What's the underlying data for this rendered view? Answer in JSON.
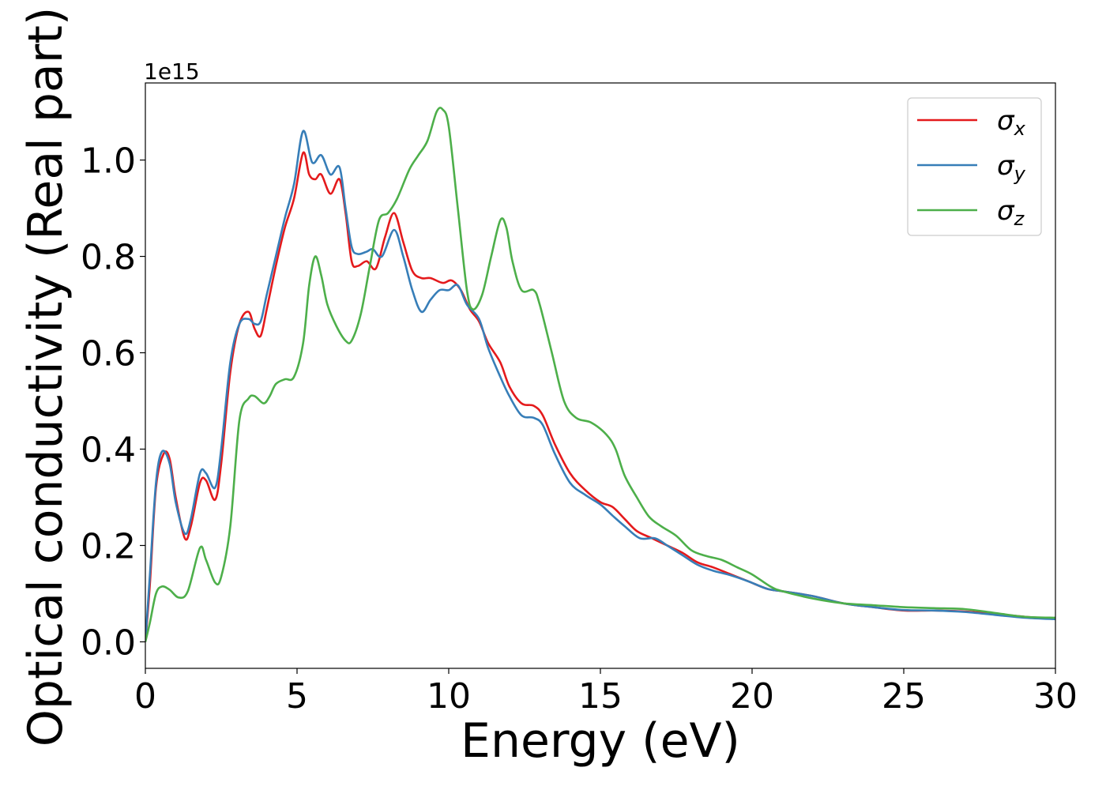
{
  "chart_data": {
    "type": "line",
    "xlabel": "Energy (eV)",
    "ylabel": "Optical conductivity (Real part)",
    "y_offset_label": "1e15",
    "xlim": [
      0,
      30
    ],
    "ylim": [
      -0.055,
      1.16
    ],
    "x_ticks": [
      0,
      5,
      10,
      15,
      20,
      25,
      30
    ],
    "x_tick_labels": [
      "0",
      "5",
      "10",
      "15",
      "20",
      "25",
      "30"
    ],
    "y_ticks": [
      0.0,
      0.2,
      0.4,
      0.6,
      0.8,
      1.0
    ],
    "y_tick_labels": [
      "0.0",
      "0.2",
      "0.4",
      "0.6",
      "0.8",
      "1.0"
    ],
    "grid": false,
    "legend_position": "top-right",
    "series": [
      {
        "name": "σx",
        "symbol": "σ",
        "subscript": "x",
        "color": "#e41a1c",
        "points": [
          [
            0,
            0
          ],
          [
            0.15,
            0.12
          ],
          [
            0.35,
            0.32
          ],
          [
            0.6,
            0.39
          ],
          [
            0.8,
            0.38
          ],
          [
            1.0,
            0.3
          ],
          [
            1.3,
            0.215
          ],
          [
            1.5,
            0.24
          ],
          [
            1.8,
            0.33
          ],
          [
            2.0,
            0.335
          ],
          [
            2.3,
            0.295
          ],
          [
            2.5,
            0.37
          ],
          [
            2.8,
            0.56
          ],
          [
            3.1,
            0.66
          ],
          [
            3.4,
            0.685
          ],
          [
            3.6,
            0.65
          ],
          [
            3.8,
            0.635
          ],
          [
            4.0,
            0.69
          ],
          [
            4.3,
            0.78
          ],
          [
            4.6,
            0.86
          ],
          [
            4.9,
            0.92
          ],
          [
            5.2,
            1.015
          ],
          [
            5.4,
            0.97
          ],
          [
            5.6,
            0.96
          ],
          [
            5.8,
            0.97
          ],
          [
            6.1,
            0.93
          ],
          [
            6.4,
            0.96
          ],
          [
            6.6,
            0.89
          ],
          [
            6.8,
            0.79
          ],
          [
            7.0,
            0.78
          ],
          [
            7.3,
            0.79
          ],
          [
            7.6,
            0.775
          ],
          [
            7.9,
            0.84
          ],
          [
            8.2,
            0.89
          ],
          [
            8.5,
            0.83
          ],
          [
            8.8,
            0.77
          ],
          [
            9.1,
            0.755
          ],
          [
            9.4,
            0.755
          ],
          [
            9.8,
            0.745
          ],
          [
            10.1,
            0.75
          ],
          [
            10.4,
            0.73
          ],
          [
            10.7,
            0.69
          ],
          [
            11.0,
            0.665
          ],
          [
            11.3,
            0.62
          ],
          [
            11.7,
            0.58
          ],
          [
            12.0,
            0.53
          ],
          [
            12.4,
            0.495
          ],
          [
            12.8,
            0.49
          ],
          [
            13.1,
            0.47
          ],
          [
            13.5,
            0.41
          ],
          [
            14.0,
            0.35
          ],
          [
            14.5,
            0.315
          ],
          [
            15.0,
            0.29
          ],
          [
            15.4,
            0.28
          ],
          [
            15.8,
            0.255
          ],
          [
            16.2,
            0.23
          ],
          [
            16.7,
            0.215
          ],
          [
            17.2,
            0.2
          ],
          [
            17.7,
            0.185
          ],
          [
            18.2,
            0.165
          ],
          [
            18.7,
            0.155
          ],
          [
            19.3,
            0.14
          ],
          [
            19.9,
            0.125
          ],
          [
            20.5,
            0.11
          ],
          [
            21.0,
            0.105
          ],
          [
            22.0,
            0.095
          ],
          [
            23.0,
            0.08
          ],
          [
            24.0,
            0.072
          ],
          [
            25.0,
            0.065
          ],
          [
            26.0,
            0.065
          ],
          [
            27.0,
            0.063
          ],
          [
            28.0,
            0.058
          ],
          [
            29.0,
            0.052
          ],
          [
            30.0,
            0.048
          ]
        ]
      },
      {
        "name": "σy",
        "symbol": "σ",
        "subscript": "y",
        "color": "#377eb8",
        "points": [
          [
            0,
            0
          ],
          [
            0.15,
            0.14
          ],
          [
            0.35,
            0.33
          ],
          [
            0.55,
            0.395
          ],
          [
            0.8,
            0.37
          ],
          [
            1.0,
            0.29
          ],
          [
            1.3,
            0.225
          ],
          [
            1.5,
            0.255
          ],
          [
            1.8,
            0.35
          ],
          [
            2.0,
            0.35
          ],
          [
            2.3,
            0.32
          ],
          [
            2.5,
            0.4
          ],
          [
            2.8,
            0.58
          ],
          [
            3.1,
            0.66
          ],
          [
            3.4,
            0.67
          ],
          [
            3.6,
            0.66
          ],
          [
            3.8,
            0.665
          ],
          [
            4.0,
            0.72
          ],
          [
            4.3,
            0.8
          ],
          [
            4.6,
            0.88
          ],
          [
            4.9,
            0.95
          ],
          [
            5.2,
            1.06
          ],
          [
            5.5,
            0.995
          ],
          [
            5.8,
            1.01
          ],
          [
            6.1,
            0.97
          ],
          [
            6.4,
            0.985
          ],
          [
            6.6,
            0.9
          ],
          [
            6.8,
            0.82
          ],
          [
            7.0,
            0.805
          ],
          [
            7.3,
            0.81
          ],
          [
            7.5,
            0.815
          ],
          [
            7.8,
            0.8
          ],
          [
            8.2,
            0.855
          ],
          [
            8.5,
            0.8
          ],
          [
            8.8,
            0.73
          ],
          [
            9.1,
            0.685
          ],
          [
            9.4,
            0.71
          ],
          [
            9.7,
            0.73
          ],
          [
            10.0,
            0.73
          ],
          [
            10.3,
            0.74
          ],
          [
            10.6,
            0.7
          ],
          [
            11.0,
            0.67
          ],
          [
            11.3,
            0.61
          ],
          [
            11.7,
            0.55
          ],
          [
            12.0,
            0.51
          ],
          [
            12.4,
            0.47
          ],
          [
            12.8,
            0.465
          ],
          [
            13.1,
            0.45
          ],
          [
            13.5,
            0.39
          ],
          [
            14.0,
            0.33
          ],
          [
            14.5,
            0.305
          ],
          [
            15.0,
            0.285
          ],
          [
            15.4,
            0.262
          ],
          [
            15.8,
            0.24
          ],
          [
            16.3,
            0.215
          ],
          [
            16.8,
            0.215
          ],
          [
            17.2,
            0.2
          ],
          [
            17.7,
            0.18
          ],
          [
            18.2,
            0.16
          ],
          [
            18.7,
            0.148
          ],
          [
            19.3,
            0.138
          ],
          [
            19.9,
            0.125
          ],
          [
            20.5,
            0.11
          ],
          [
            21.0,
            0.105
          ],
          [
            22.0,
            0.095
          ],
          [
            23.0,
            0.08
          ],
          [
            24.0,
            0.072
          ],
          [
            25.0,
            0.066
          ],
          [
            26.0,
            0.065
          ],
          [
            27.0,
            0.062
          ],
          [
            28.0,
            0.056
          ],
          [
            29.0,
            0.05
          ],
          [
            30.0,
            0.047
          ]
        ]
      },
      {
        "name": "σz",
        "symbol": "σ",
        "subscript": "z",
        "color": "#4daf4a",
        "points": [
          [
            0,
            0
          ],
          [
            0.15,
            0.04
          ],
          [
            0.35,
            0.1
          ],
          [
            0.55,
            0.115
          ],
          [
            0.8,
            0.108
          ],
          [
            1.1,
            0.092
          ],
          [
            1.4,
            0.105
          ],
          [
            1.8,
            0.195
          ],
          [
            2.0,
            0.17
          ],
          [
            2.3,
            0.123
          ],
          [
            2.5,
            0.135
          ],
          [
            2.8,
            0.24
          ],
          [
            3.1,
            0.46
          ],
          [
            3.4,
            0.505
          ],
          [
            3.6,
            0.51
          ],
          [
            3.9,
            0.495
          ],
          [
            4.1,
            0.51
          ],
          [
            4.3,
            0.535
          ],
          [
            4.6,
            0.545
          ],
          [
            4.9,
            0.55
          ],
          [
            5.2,
            0.62
          ],
          [
            5.4,
            0.74
          ],
          [
            5.6,
            0.8
          ],
          [
            5.8,
            0.76
          ],
          [
            6.0,
            0.7
          ],
          [
            6.3,
            0.655
          ],
          [
            6.6,
            0.625
          ],
          [
            6.8,
            0.625
          ],
          [
            7.1,
            0.68
          ],
          [
            7.4,
            0.78
          ],
          [
            7.7,
            0.875
          ],
          [
            8.0,
            0.89
          ],
          [
            8.3,
            0.92
          ],
          [
            8.7,
            0.98
          ],
          [
            9.0,
            1.01
          ],
          [
            9.3,
            1.04
          ],
          [
            9.6,
            1.1
          ],
          [
            9.8,
            1.105
          ],
          [
            10.0,
            1.07
          ],
          [
            10.3,
            0.9
          ],
          [
            10.6,
            0.73
          ],
          [
            10.8,
            0.69
          ],
          [
            11.1,
            0.72
          ],
          [
            11.4,
            0.8
          ],
          [
            11.7,
            0.875
          ],
          [
            11.9,
            0.86
          ],
          [
            12.1,
            0.79
          ],
          [
            12.4,
            0.73
          ],
          [
            12.8,
            0.73
          ],
          [
            13.0,
            0.7
          ],
          [
            13.4,
            0.6
          ],
          [
            13.8,
            0.5
          ],
          [
            14.2,
            0.465
          ],
          [
            14.7,
            0.455
          ],
          [
            15.2,
            0.43
          ],
          [
            15.5,
            0.4
          ],
          [
            15.8,
            0.345
          ],
          [
            16.2,
            0.3
          ],
          [
            16.6,
            0.26
          ],
          [
            17.0,
            0.24
          ],
          [
            17.5,
            0.22
          ],
          [
            18.0,
            0.19
          ],
          [
            18.5,
            0.178
          ],
          [
            19.0,
            0.17
          ],
          [
            19.5,
            0.155
          ],
          [
            20.0,
            0.14
          ],
          [
            20.6,
            0.115
          ],
          [
            21.0,
            0.105
          ],
          [
            22.0,
            0.09
          ],
          [
            23.0,
            0.08
          ],
          [
            24.0,
            0.076
          ],
          [
            25.0,
            0.072
          ],
          [
            26.0,
            0.07
          ],
          [
            27.0,
            0.068
          ],
          [
            28.0,
            0.06
          ],
          [
            29.0,
            0.052
          ],
          [
            30.0,
            0.05
          ]
        ]
      }
    ]
  }
}
